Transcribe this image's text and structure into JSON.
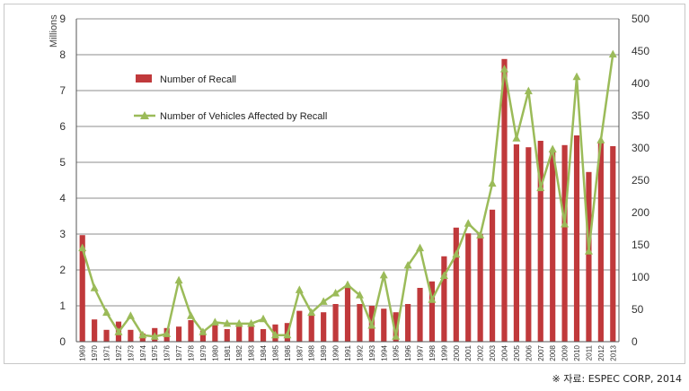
{
  "chart_data": {
    "type": "bar+line",
    "title": "",
    "y_left": {
      "label": "Millions",
      "ylim": [
        0,
        9
      ],
      "ticks": [
        0,
        1,
        2,
        3,
        4,
        5,
        6,
        7,
        8,
        9
      ]
    },
    "y_right": {
      "label": "",
      "ylim": [
        0,
        500
      ],
      "ticks": [
        0,
        50,
        100,
        150,
        200,
        250,
        300,
        350,
        400,
        450,
        500
      ]
    },
    "grid": true,
    "legend_position": "upper-left inside",
    "categories": [
      "1969",
      "1970",
      "1971",
      "1972",
      "1973",
      "1974",
      "1975",
      "1976",
      "1977",
      "1978",
      "1979",
      "1980",
      "1981",
      "1982",
      "1983",
      "1984",
      "1985",
      "1986",
      "1987",
      "1988",
      "1989",
      "1990",
      "1991",
      "1992",
      "1993",
      "1994",
      "1995",
      "1996",
      "1997",
      "1998",
      "1999",
      "2000",
      "2001",
      "2002",
      "2003",
      "2004",
      "2005",
      "2006",
      "2007",
      "2008",
      "2009",
      "2010",
      "2011",
      "2012",
      "2013"
    ],
    "series": [
      {
        "name": "Number of Recall",
        "kind": "bar",
        "axis": "left",
        "color": "#c0393b",
        "values": [
          2.97,
          0.62,
          0.33,
          0.56,
          0.33,
          0.23,
          0.38,
          0.38,
          0.42,
          0.6,
          0.3,
          0.47,
          0.35,
          0.42,
          0.45,
          0.35,
          0.48,
          0.52,
          0.86,
          0.75,
          0.82,
          1.05,
          1.5,
          1.05,
          1.0,
          0.92,
          0.82,
          1.05,
          1.5,
          1.68,
          2.38,
          3.18,
          3.02,
          3.0,
          3.68,
          7.88,
          5.5,
          5.42,
          5.6,
          5.3,
          5.48,
          5.75,
          4.73,
          5.6,
          5.45
        ]
      },
      {
        "name": "Number of Vehicles Affected by Recall",
        "kind": "line",
        "axis": "right",
        "color": "#9bbb59",
        "values": [
          145,
          83,
          45,
          15,
          40,
          10,
          8,
          12,
          95,
          40,
          15,
          30,
          28,
          28,
          28,
          35,
          10,
          10,
          80,
          45,
          62,
          75,
          88,
          72,
          25,
          103,
          8,
          118,
          145,
          65,
          102,
          135,
          183,
          165,
          245,
          422,
          315,
          388,
          238,
          298,
          182,
          410,
          140,
          312,
          445
        ]
      }
    ],
    "source_note": "※ 자료: ESPEC CORP, 2014"
  }
}
